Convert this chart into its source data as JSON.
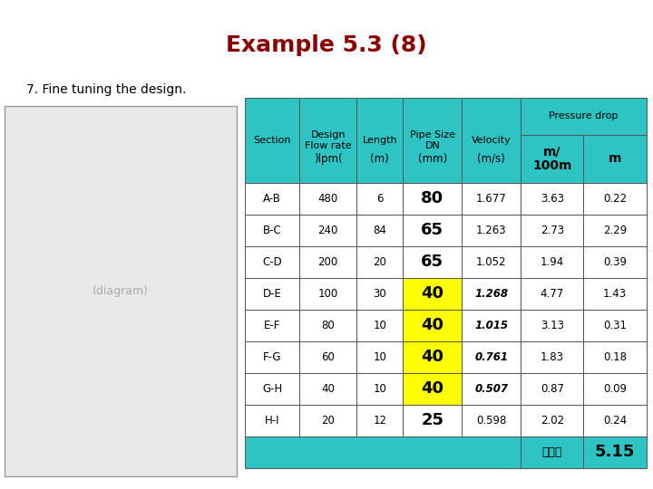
{
  "title": "Example 5.3 (8)",
  "subtitle": "7. Fine tuning the design.",
  "title_color": "#8B0000",
  "subtitle_color": "#000000",
  "header_bg": "#2EC4C4",
  "yellow_bg": "#FFFF00",
  "white_bg": "#FFFFFF",
  "data": [
    [
      "A-B",
      "480",
      "6",
      "80",
      "1.677",
      "3.63",
      "0.22"
    ],
    [
      "B-C",
      "240",
      "84",
      "65",
      "1.263",
      "2.73",
      "2.29"
    ],
    [
      "C-D",
      "200",
      "20",
      "65",
      "1.052",
      "1.94",
      "0.39"
    ],
    [
      "D-E",
      "100",
      "30",
      "40",
      "1.268",
      "4.77",
      "1.43"
    ],
    [
      "E-F",
      "80",
      "10",
      "40",
      "1.015",
      "3.13",
      "0.31"
    ],
    [
      "F-G",
      "60",
      "10",
      "40",
      "0.761",
      "1.83",
      "0.18"
    ],
    [
      "G-H",
      "40",
      "10",
      "40",
      "0.507",
      "0.87",
      "0.09"
    ],
    [
      "H-I",
      "20",
      "12",
      "25",
      "0.598",
      "2.02",
      "0.24"
    ]
  ],
  "total_label": "รวม",
  "total_value": "5.15",
  "pipe_size_yellow_rows": [
    3,
    4,
    5,
    6
  ],
  "velocity_italic_rows": [
    3,
    4,
    5,
    6
  ],
  "fig_width": 7.2,
  "fig_height": 5.4,
  "dpi": 100
}
